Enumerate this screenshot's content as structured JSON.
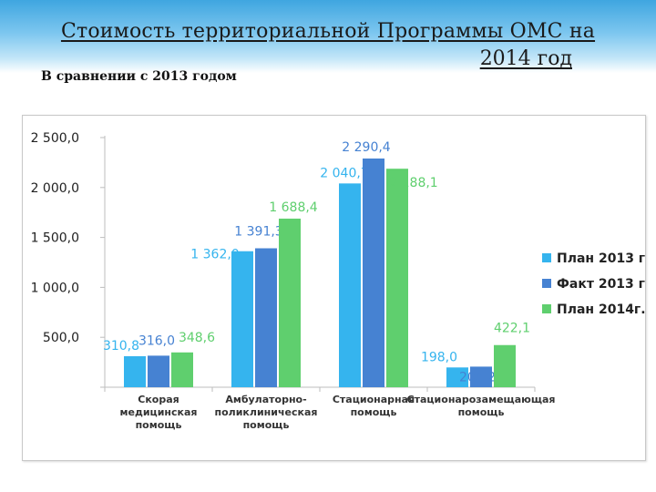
{
  "header": {
    "title_line1": "Стоимость территориальной Программы ОМС на",
    "title_line2": "2014 год",
    "subtitle": "В сравнении с 2013 годом"
  },
  "chart_data": {
    "type": "bar",
    "categories": [
      [
        "Скорая",
        "медицинская",
        "помощь"
      ],
      [
        "Амбулаторно-",
        "поликлиническая",
        "помощь"
      ],
      [
        "Стационарная",
        "помощь"
      ],
      [
        "Стационарозамещающая",
        "помощь"
      ]
    ],
    "series": [
      {
        "name": "План 2013 г.",
        "color": "#35b4ee",
        "values": [
          310.8,
          1362.0,
          2040.7,
          198.0
        ],
        "labels": [
          "310,8",
          "1 362,0",
          "2 040,7",
          "198,0"
        ]
      },
      {
        "name": "Факт 2013 г.",
        "color": "#4682d2",
        "values": [
          316.0,
          1391.3,
          2290.4,
          206.2
        ],
        "labels": [
          "316,0",
          "1 391,3",
          "2 290,4",
          "206,2"
        ]
      },
      {
        "name": "План 2014г.",
        "color": "#5fcf6e",
        "values": [
          348.6,
          1688.4,
          2188.1,
          422.1
        ],
        "labels": [
          "348,6",
          "1 688,4",
          "2 188,1",
          "422,1"
        ]
      }
    ],
    "ylim": [
      0,
      2500
    ],
    "yticks": [
      0,
      500,
      1000,
      1500,
      2000,
      2500
    ],
    "ytick_labels": [
      "",
      "500,0",
      "1 000,0",
      "1 500,0",
      "2 000,0",
      "2 500,0"
    ],
    "grid": false,
    "legend_position": "right"
  }
}
